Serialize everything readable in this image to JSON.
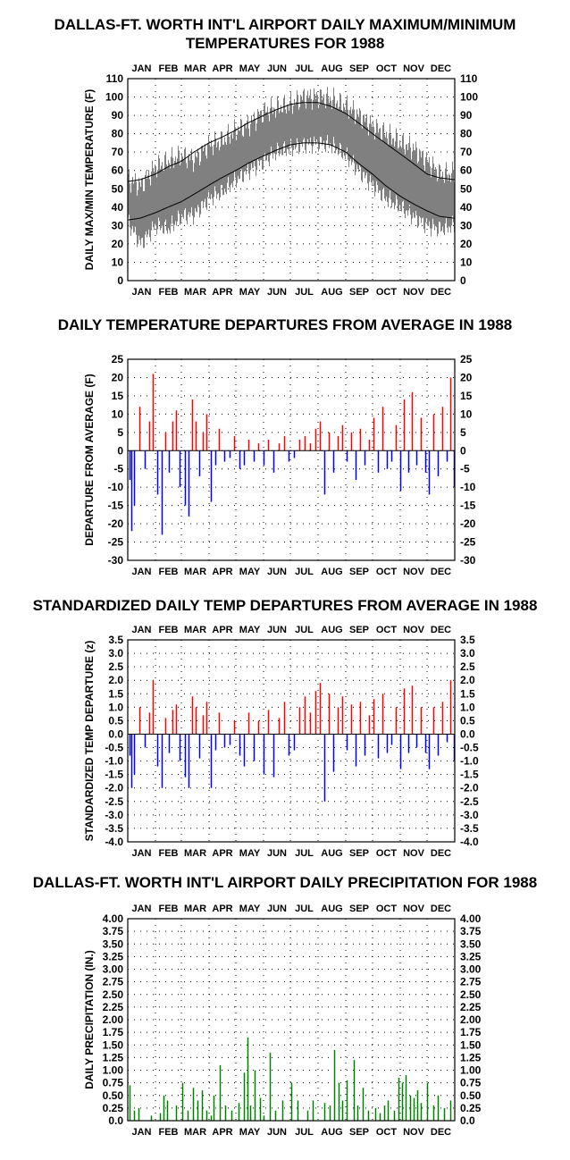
{
  "months": [
    "JAN",
    "FEB",
    "MAR",
    "APR",
    "MAY",
    "JUN",
    "JUL",
    "AUG",
    "SEP",
    "OCT",
    "NOV",
    "DEC"
  ],
  "colors": {
    "series_gray": "#808080",
    "positive": "#ff0000",
    "negative": "#0000ff",
    "precip": "#008000",
    "axis": "#000000"
  },
  "chart_data": [
    {
      "type": "line",
      "title_line1": "DALLAS-FT. WORTH INT'L AIRPORT DAILY MAXIMUM/MINIMUM",
      "title_line2": "TEMPERATURES FOR 1988",
      "ylabel": "DAILY MAX/MIN TEMPERATURE (F)",
      "ylim": [
        0,
        110
      ],
      "yticks": [
        "0",
        "10",
        "20",
        "30",
        "40",
        "50",
        "60",
        "70",
        "80",
        "90",
        "100",
        "110"
      ],
      "grid": true,
      "x": [
        "Jan 1",
        "Jan 15",
        "Feb 1",
        "Feb 15",
        "Mar 1",
        "Mar 15",
        "Apr 1",
        "Apr 15",
        "May 1",
        "May 15",
        "Jun 1",
        "Jun 15",
        "Jul 1",
        "Jul 15",
        "Aug 1",
        "Aug 15",
        "Sep 1",
        "Sep 15",
        "Oct 1",
        "Oct 15",
        "Nov 1",
        "Nov 15",
        "Dec 1",
        "Dec 15",
        "Dec 31"
      ],
      "series": [
        {
          "kind": "observed_max",
          "values": [
            55,
            52,
            62,
            65,
            68,
            66,
            74,
            76,
            82,
            85,
            92,
            94,
            96,
            100,
            100,
            99,
            95,
            90,
            84,
            80,
            75,
            72,
            65,
            58,
            58
          ]
        },
        {
          "kind": "observed_min",
          "values": [
            32,
            20,
            30,
            28,
            35,
            36,
            45,
            48,
            55,
            60,
            65,
            70,
            72,
            74,
            75,
            74,
            68,
            60,
            52,
            45,
            40,
            35,
            30,
            28,
            30
          ]
        },
        {
          "kind": "average_max",
          "values": [
            54,
            55,
            58,
            62,
            65,
            70,
            75,
            78,
            82,
            86,
            90,
            93,
            96,
            97,
            97,
            95,
            91,
            86,
            80,
            75,
            69,
            64,
            58,
            56,
            55
          ]
        },
        {
          "kind": "average_min",
          "values": [
            33,
            34,
            37,
            40,
            43,
            47,
            52,
            56,
            60,
            64,
            68,
            71,
            74,
            75,
            75,
            74,
            70,
            64,
            58,
            52,
            46,
            42,
            38,
            35,
            34
          ]
        }
      ]
    },
    {
      "type": "bar",
      "title": "DAILY TEMPERATURE DEPARTURES FROM AVERAGE IN 1988",
      "ylabel": "DEPARTURE FROM AVERAGE (F)",
      "ylim": [
        -30,
        25
      ],
      "yticks": [
        "-30",
        "-25",
        "-20",
        "-15",
        "-10",
        "-5",
        "0",
        "5",
        "10",
        "15",
        "20",
        "25"
      ],
      "grid": true,
      "x": [
        "Jan 3",
        "Jan 5",
        "Jan 8",
        "Jan 14",
        "Jan 20",
        "Jan 25",
        "Jan 29",
        "Feb 3",
        "Feb 8",
        "Feb 12",
        "Feb 16",
        "Feb 20",
        "Feb 24",
        "Feb 28",
        "Mar 5",
        "Mar 9",
        "Mar 13",
        "Mar 17",
        "Mar 21",
        "Mar 25",
        "Mar 29",
        "Apr 3",
        "Apr 8",
        "Apr 12",
        "Apr 18",
        "Apr 24",
        "Apr 29",
        "May 5",
        "May 10",
        "May 15",
        "May 21",
        "May 26",
        "Jun 1",
        "Jun 6",
        "Jun 12",
        "Jun 18",
        "Jun 24",
        "Jun 29",
        "Jul 5",
        "Jul 11",
        "Jul 17",
        "Jul 23",
        "Jul 29",
        "Aug 3",
        "Aug 8",
        "Aug 13",
        "Aug 18",
        "Aug 23",
        "Aug 28",
        "Sep 2",
        "Sep 7",
        "Sep 12",
        "Sep 17",
        "Sep 22",
        "Sep 27",
        "Oct 2",
        "Oct 7",
        "Oct 12",
        "Oct 17",
        "Oct 22",
        "Oct 27",
        "Nov 1",
        "Nov 5",
        "Nov 10",
        "Nov 14",
        "Nov 19",
        "Nov 24",
        "Nov 29",
        "Dec 3",
        "Dec 8",
        "Dec 13",
        "Dec 18",
        "Dec 23",
        "Dec 27",
        "Dec 31"
      ],
      "values": [
        -8,
        -22,
        -15,
        12,
        -5,
        8,
        21,
        -12,
        -23,
        5,
        -6,
        8,
        11,
        -10,
        -15,
        -18,
        14,
        8,
        -7,
        5,
        10,
        -14,
        -4,
        6,
        -3,
        -2,
        4,
        -5,
        -4,
        3,
        -3,
        2,
        -4,
        3,
        -6,
        2,
        4,
        -3,
        -2,
        3,
        4,
        2,
        6,
        8,
        -12,
        5,
        -6,
        4,
        7,
        -3,
        5,
        -8,
        6,
        -4,
        3,
        9,
        -6,
        12,
        -5,
        -3,
        7,
        -11,
        14,
        -6,
        16,
        -4,
        9,
        -6,
        -12,
        10,
        -7,
        12,
        -3,
        20,
        -10
      ]
    },
    {
      "type": "bar",
      "title": "STANDARDIZED DAILY TEMP DEPARTURES FROM AVERAGE IN 1988",
      "ylabel": "STANDARDIZED TEMP DEPARTURE (z)",
      "ylim": [
        -4.0,
        3.5
      ],
      "yticks": [
        "-4.0",
        "-3.5",
        "-3.0",
        "-2.5",
        "-2.0",
        "-1.5",
        "-1.0",
        "-0.5",
        "0.0",
        "0.5",
        "1.0",
        "1.5",
        "2.0",
        "2.5",
        "3.0",
        "3.5"
      ],
      "grid": true,
      "x": [
        "Jan 3",
        "Jan 5",
        "Jan 8",
        "Jan 14",
        "Jan 20",
        "Jan 25",
        "Jan 29",
        "Feb 3",
        "Feb 8",
        "Feb 12",
        "Feb 16",
        "Feb 20",
        "Feb 24",
        "Feb 28",
        "Mar 5",
        "Mar 9",
        "Mar 13",
        "Mar 17",
        "Mar 21",
        "Mar 25",
        "Mar 29",
        "Apr 3",
        "Apr 8",
        "Apr 12",
        "Apr 18",
        "Apr 24",
        "Apr 29",
        "May 5",
        "May 10",
        "May 15",
        "May 21",
        "May 26",
        "Jun 1",
        "Jun 6",
        "Jun 12",
        "Jun 18",
        "Jun 24",
        "Jun 29",
        "Jul 5",
        "Jul 11",
        "Jul 17",
        "Jul 23",
        "Jul 29",
        "Aug 3",
        "Aug 8",
        "Aug 13",
        "Aug 18",
        "Aug 23",
        "Aug 28",
        "Sep 2",
        "Sep 7",
        "Sep 12",
        "Sep 17",
        "Sep 22",
        "Sep 27",
        "Oct 2",
        "Oct 7",
        "Oct 12",
        "Oct 17",
        "Oct 22",
        "Oct 27",
        "Nov 1",
        "Nov 5",
        "Nov 10",
        "Nov 14",
        "Nov 19",
        "Nov 24",
        "Nov 29",
        "Dec 3",
        "Dec 8",
        "Dec 13",
        "Dec 18",
        "Dec 23",
        "Dec 27",
        "Dec 31"
      ],
      "values": [
        -0.8,
        -2.0,
        -1.5,
        1.0,
        -0.5,
        0.8,
        2.0,
        -1.2,
        -2.0,
        0.6,
        -0.7,
        0.9,
        1.1,
        -1.0,
        -1.6,
        -2.0,
        1.4,
        1.0,
        -0.9,
        0.7,
        1.2,
        -2.0,
        -0.6,
        0.8,
        -0.5,
        -0.4,
        0.5,
        -0.8,
        -1.2,
        0.8,
        -1.0,
        0.5,
        -1.5,
        0.9,
        -1.6,
        0.6,
        1.2,
        -0.8,
        -0.6,
        1.0,
        1.4,
        0.8,
        1.6,
        1.9,
        -2.5,
        1.5,
        -1.4,
        1.0,
        1.4,
        -0.6,
        1.1,
        -1.2,
        1.2,
        -0.8,
        0.7,
        1.3,
        -0.9,
        1.5,
        -0.7,
        -0.4,
        1.0,
        -1.3,
        1.7,
        -0.7,
        1.8,
        -0.5,
        1.0,
        -0.7,
        -1.3,
        1.0,
        -0.8,
        1.2,
        -0.3,
        2.0,
        -1.0
      ]
    },
    {
      "type": "bar",
      "title": "DALLAS-FT. WORTH INT'L AIRPORT DAILY PRECIPITATION FOR 1988",
      "ylabel": "DAILY PRECIPITATION (IN.)",
      "ylim": [
        0,
        4.0
      ],
      "yticks": [
        "0.0",
        "0.25",
        "0.50",
        "0.75",
        "1.00",
        "1.25",
        "1.50",
        "1.75",
        "2.00",
        "2.25",
        "2.50",
        "2.75",
        "3.00",
        "3.25",
        "3.50",
        "3.75",
        "4.00"
      ],
      "grid": true,
      "x": [
        "Jan 3",
        "Jan 8",
        "Jan 13",
        "Jan 27",
        "Feb 6",
        "Feb 10",
        "Feb 14",
        "Feb 24",
        "Mar 2",
        "Mar 8",
        "Mar 14",
        "Mar 19",
        "Mar 24",
        "Mar 29",
        "Apr 3",
        "Apr 6",
        "Apr 13",
        "Apr 19",
        "Apr 26",
        "May 4",
        "May 10",
        "May 14",
        "May 17",
        "May 22",
        "May 28",
        "Jun 1",
        "Jun 8",
        "Jun 14",
        "Jun 22",
        "Jul 2",
        "Jul 9",
        "Jul 20",
        "Jul 26",
        "Aug 8",
        "Aug 14",
        "Aug 19",
        "Aug 24",
        "Aug 28",
        "Sep 2",
        "Sep 10",
        "Sep 14",
        "Sep 20",
        "Sep 26",
        "Oct 4",
        "Oct 9",
        "Oct 14",
        "Oct 18",
        "Oct 25",
        "Oct 30",
        "Nov 3",
        "Nov 7",
        "Nov 12",
        "Nov 16",
        "Nov 20",
        "Nov 24",
        "Dec 1",
        "Dec 8",
        "Dec 13",
        "Dec 20",
        "Dec 27"
      ],
      "values": [
        0.7,
        0.2,
        0.25,
        0.1,
        0.15,
        0.5,
        0.4,
        0.3,
        0.75,
        0.2,
        0.65,
        0.4,
        0.6,
        0.2,
        0.1,
        0.5,
        1.1,
        0.3,
        0.2,
        0.35,
        0.95,
        1.65,
        0.3,
        1.0,
        0.45,
        0.1,
        1.35,
        0.2,
        0.4,
        0.75,
        0.4,
        0.2,
        0.4,
        0.35,
        0.3,
        1.4,
        0.75,
        0.4,
        0.8,
        1.2,
        0.3,
        0.65,
        0.2,
        0.25,
        0.15,
        0.3,
        0.4,
        0.2,
        0.85,
        0.75,
        0.9,
        0.5,
        0.45,
        0.6,
        0.35,
        0.75,
        0.3,
        0.5,
        0.25,
        0.4
      ]
    }
  ]
}
